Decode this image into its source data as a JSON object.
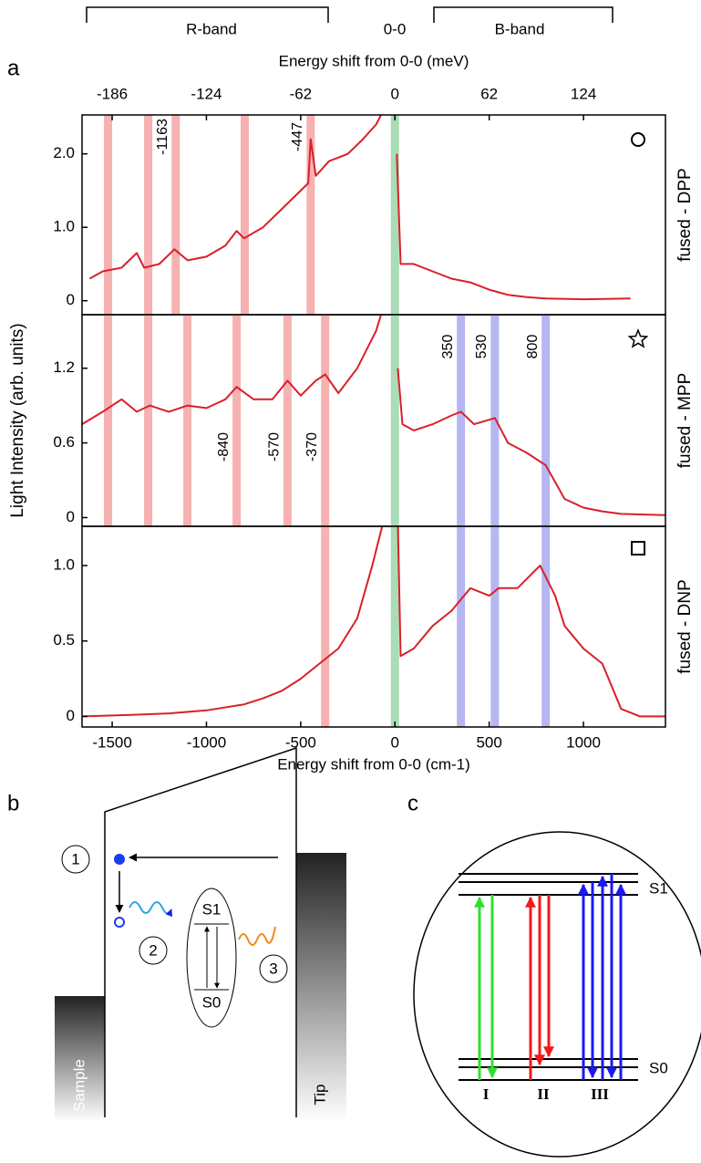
{
  "header": {
    "letter": "a",
    "bands": [
      "R-band",
      "0-0",
      "B-band"
    ]
  },
  "chart_data": [
    {
      "type": "line",
      "name": "fused - DPP",
      "x2label": "Energy shift from 0-0 (meV)",
      "x2lim": [
        -205.8,
        177.9
      ],
      "x2ticks": [
        -186,
        -124,
        -62,
        0,
        62,
        124
      ],
      "xlim": [
        -1660,
        1435
      ],
      "ylim": [
        -0.19,
        2.53
      ],
      "yticks": [
        0,
        {
          "value": 1.0,
          "label": "1.0"
        },
        {
          "value": 2.0,
          "label": "2.0"
        }
      ],
      "series": [
        {
          "color": "#d9202a",
          "x": [
            -1620,
            -1550,
            -1450,
            -1370,
            -1330,
            -1250,
            -1170,
            -1100,
            -1000,
            -900,
            -840,
            -800,
            -700,
            -600,
            -520,
            -460,
            -447,
            -420,
            -350,
            -250,
            -170,
            -100,
            -60,
            0,
            10,
            30,
            100,
            200,
            300,
            400,
            500,
            600,
            700,
            800,
            1000,
            1250
          ],
          "values": [
            0.3,
            0.4,
            0.45,
            0.65,
            0.45,
            0.5,
            0.7,
            0.55,
            0.6,
            0.75,
            0.95,
            0.85,
            1.0,
            1.25,
            1.45,
            1.6,
            2.2,
            1.7,
            1.9,
            2.0,
            2.2,
            2.4,
            2.6,
            null,
            2.0,
            0.5,
            0.5,
            0.4,
            0.3,
            0.25,
            0.15,
            0.08,
            0.05,
            0.03,
            0.02,
            0.03
          ]
        }
      ],
      "bands": [
        {
          "x": -1522,
          "color": "#f5a3a3"
        },
        {
          "x": -1309,
          "color": "#f5a3a3"
        },
        {
          "x": -1163,
          "color": "#f5a3a3",
          "label": -1163
        },
        {
          "x": -797,
          "color": "#f5a3a3"
        },
        {
          "x": -447,
          "color": "#f5a3a3",
          "label": -447
        },
        {
          "x": 0,
          "color": "#9bd6a8"
        }
      ]
    },
    {
      "type": "line",
      "name": "fused - MPP",
      "ylabel": "Light Intensity (arb. units)",
      "xlim": [
        -1660,
        1435
      ],
      "ylim": [
        -0.07,
        1.63
      ],
      "yticks": [
        0,
        {
          "value": 0.6,
          "label": "0.6"
        },
        {
          "value": 1.2,
          "label": "1.2"
        }
      ],
      "series": [
        {
          "color": "#d9202a",
          "x": [
            -1660,
            -1550,
            -1450,
            -1370,
            -1300,
            -1200,
            -1100,
            -1000,
            -900,
            -840,
            -750,
            -650,
            -570,
            -500,
            -420,
            -370,
            -300,
            -200,
            -100,
            -60,
            0,
            15,
            40,
            100,
            200,
            300,
            350,
            420,
            530,
            600,
            700,
            800,
            900,
            1000,
            1100,
            1200,
            1435
          ],
          "values": [
            0.75,
            0.85,
            0.95,
            0.85,
            0.9,
            0.85,
            0.9,
            0.88,
            0.95,
            1.05,
            0.95,
            0.95,
            1.1,
            0.98,
            1.1,
            1.15,
            1.0,
            1.2,
            1.5,
            1.7,
            null,
            1.2,
            0.75,
            0.7,
            0.75,
            0.82,
            0.85,
            0.75,
            0.8,
            0.6,
            0.52,
            0.42,
            0.15,
            0.08,
            0.05,
            0.03,
            0.02
          ]
        }
      ],
      "bands": [
        {
          "x": -1522,
          "color": "#f5a3a3"
        },
        {
          "x": -1309,
          "color": "#f5a3a3"
        },
        {
          "x": -1101,
          "color": "#f5a3a3"
        },
        {
          "x": -840,
          "color": "#f5a3a3",
          "label": -840
        },
        {
          "x": -570,
          "color": "#f5a3a3",
          "label": -570
        },
        {
          "x": -370,
          "color": "#f5a3a3",
          "label": -370
        },
        {
          "x": 0,
          "color": "#9bd6a8"
        },
        {
          "x": 350,
          "color": "#a9a9f0",
          "label": 350
        },
        {
          "x": 530,
          "color": "#a9a9f0",
          "label": 530
        },
        {
          "x": 800,
          "color": "#a9a9f0",
          "label": 800
        }
      ]
    },
    {
      "type": "line",
      "name": "fused - DNP",
      "xlabel": "Energy shift from 0-0 (cm-1)",
      "xlim": [
        -1660,
        1435
      ],
      "xticks": [
        -1500,
        -1000,
        -500,
        0,
        500,
        1000
      ],
      "ylim": [
        -0.07,
        1.26
      ],
      "yticks": [
        0,
        {
          "value": 0.5,
          "label": "0.5"
        },
        {
          "value": 1.0,
          "label": "1.0"
        }
      ],
      "series": [
        {
          "color": "#d9202a",
          "x": [
            -1660,
            -1400,
            -1200,
            -1000,
            -800,
            -700,
            -600,
            -500,
            -400,
            -300,
            -200,
            -120,
            -60,
            0,
            15,
            30,
            100,
            200,
            300,
            400,
            500,
            550,
            650,
            770,
            850,
            900,
            1000,
            1100,
            1200,
            1300,
            1435
          ],
          "values": [
            0,
            0.01,
            0.02,
            0.04,
            0.08,
            0.12,
            0.17,
            0.25,
            0.35,
            0.45,
            0.65,
            1.0,
            1.3,
            null,
            1.3,
            0.4,
            0.45,
            0.6,
            0.7,
            0.85,
            0.8,
            0.85,
            0.85,
            1.0,
            0.8,
            0.6,
            0.45,
            0.35,
            0.05,
            0,
            0
          ]
        }
      ],
      "bands": [
        {
          "x": -370,
          "color": "#f5a3a3"
        },
        {
          "x": 0,
          "color": "#9bd6a8"
        },
        {
          "x": 350,
          "color": "#a9a9f0"
        },
        {
          "x": 530,
          "color": "#a9a9f0"
        },
        {
          "x": 800,
          "color": "#a9a9f0"
        }
      ]
    }
  ],
  "panel_b": {
    "letter": "b",
    "steps": [
      "1",
      "2",
      "3"
    ],
    "levels": [
      "S1",
      "S0"
    ],
    "sample": "Sample",
    "tip": "Tip"
  },
  "panel_c": {
    "letter": "c",
    "levels": [
      "S1",
      "S0"
    ],
    "groups": [
      "I",
      "II",
      "III"
    ]
  }
}
